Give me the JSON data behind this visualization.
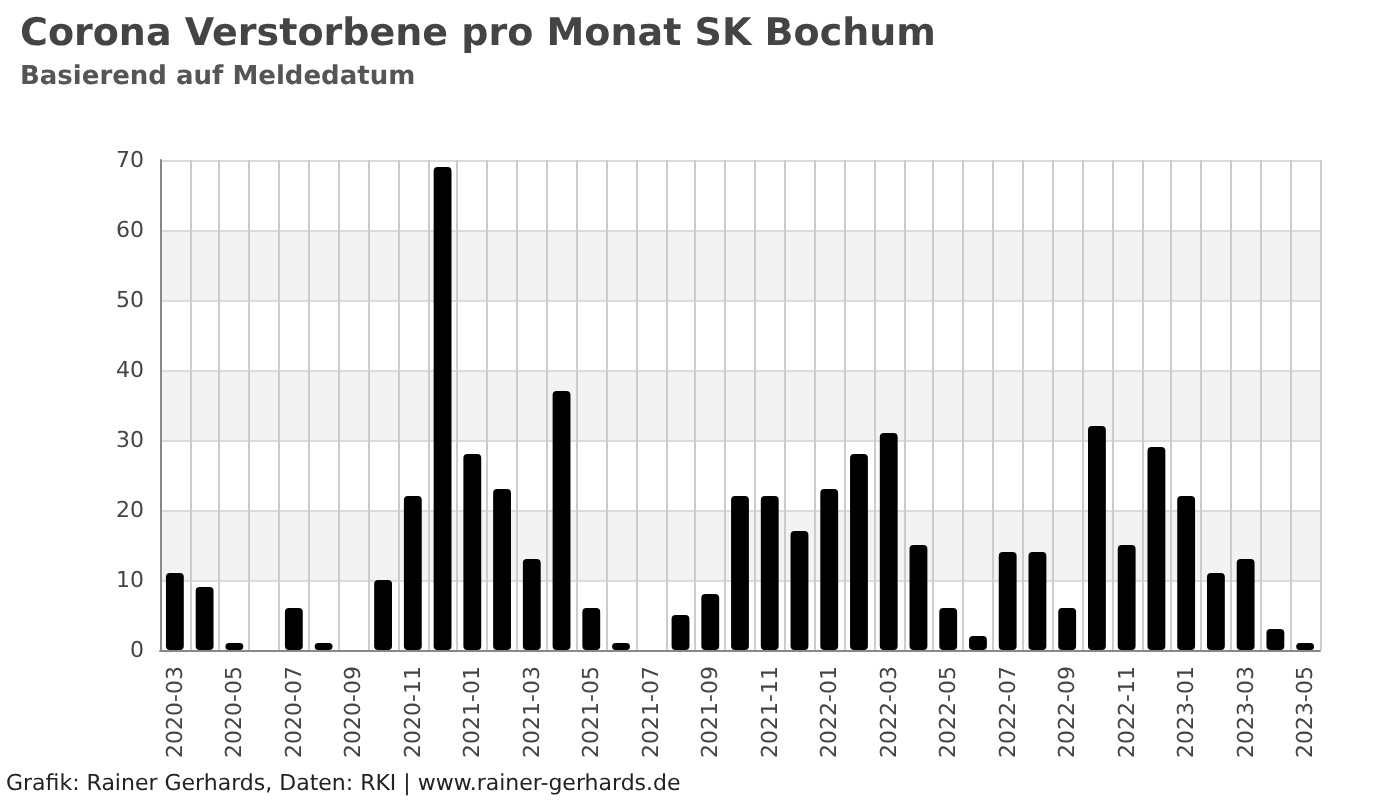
{
  "chart_data": {
    "type": "bar",
    "title": "Corona Verstorbene pro Monat SK Bochum",
    "subtitle": "Basierend auf Meldedatum",
    "categories": [
      "2020-03",
      null,
      "2020-05",
      null,
      "2020-07",
      null,
      "2020-09",
      null,
      "2020-11",
      null,
      "2021-01",
      null,
      "2021-03",
      null,
      "2021-05",
      null,
      "2021-07",
      null,
      "2021-09",
      null,
      "2021-11",
      null,
      "2022-01",
      null,
      "2022-03",
      null,
      "2022-05",
      null,
      "2022-07",
      null,
      "2022-09",
      null,
      "2022-11",
      null,
      "2023-01",
      null,
      "2023-03",
      null,
      "2023-05"
    ],
    "values": [
      11,
      9,
      1,
      0,
      6,
      1,
      0,
      10,
      22,
      69,
      28,
      23,
      13,
      37,
      6,
      1,
      0,
      5,
      8,
      22,
      22,
      17,
      23,
      28,
      31,
      15,
      6,
      2,
      14,
      14,
      6,
      32,
      15,
      29,
      22,
      11,
      13,
      3,
      1
    ],
    "color": "#000000",
    "ylim": [
      0,
      70
    ],
    "yticks": [
      0,
      10,
      20,
      30,
      40,
      50,
      60,
      70
    ],
    "grid": true,
    "annotations": [
      "Grafik: Rainer Gerhards, Daten: RKI | www.rainer-gerhards.de"
    ]
  }
}
